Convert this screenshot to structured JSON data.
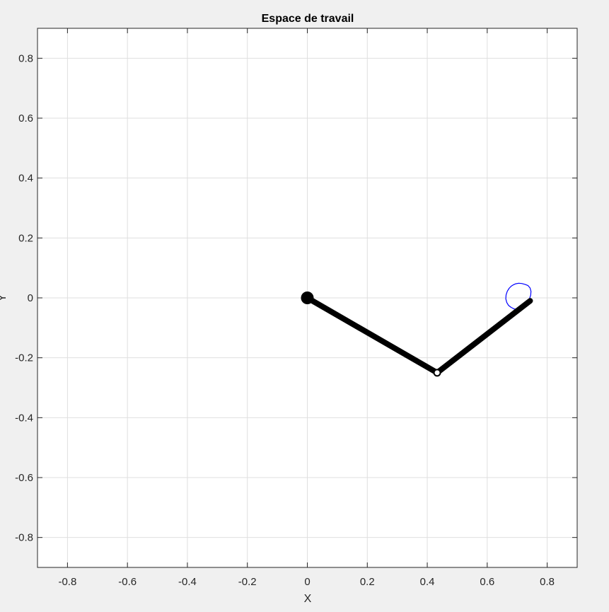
{
  "chart_data": {
    "type": "line",
    "title": "Espace de travail",
    "xlabel": "X",
    "ylabel": "Y",
    "xlim": [
      -0.9,
      0.9
    ],
    "ylim": [
      -0.9,
      0.9
    ],
    "xticks": [
      -0.8,
      -0.6,
      -0.4,
      -0.2,
      0,
      0.2,
      0.4,
      0.6,
      0.8
    ],
    "yticks": [
      -0.8,
      -0.6,
      -0.4,
      -0.2,
      0,
      0.2,
      0.4,
      0.6,
      0.8
    ],
    "xtick_labels": [
      "-0.8",
      "-0.6",
      "-0.4",
      "-0.2",
      "0",
      "0.2",
      "0.4",
      "0.6",
      "0.8"
    ],
    "ytick_labels": [
      "-0.8",
      "-0.6",
      "-0.4",
      "-0.2",
      "0",
      "0.2",
      "0.4",
      "0.6",
      "0.8"
    ],
    "grid": true,
    "arm": {
      "base": [
        0,
        0
      ],
      "elbow": [
        0.433,
        -0.25
      ],
      "end_effector": [
        0.743,
        -0.01
      ],
      "color": "#000000"
    },
    "trace": {
      "color": "#0000ff",
      "x": [
        0.695,
        0.705,
        0.715,
        0.726,
        0.736,
        0.743,
        0.746,
        0.745,
        0.741,
        0.734,
        0.726,
        0.717,
        0.708,
        0.699,
        0.69,
        0.68,
        0.671,
        0.665,
        0.662,
        0.663,
        0.667,
        0.673,
        0.68,
        0.688,
        0.695
      ],
      "y": [
        0.047,
        0.049,
        0.048,
        0.045,
        0.041,
        0.033,
        0.022,
        0.009,
        -0.003,
        -0.014,
        -0.022,
        -0.028,
        -0.033,
        -0.037,
        -0.037,
        -0.032,
        -0.025,
        -0.015,
        -0.003,
        0.01,
        0.022,
        0.032,
        0.039,
        0.044,
        0.047
      ]
    }
  }
}
